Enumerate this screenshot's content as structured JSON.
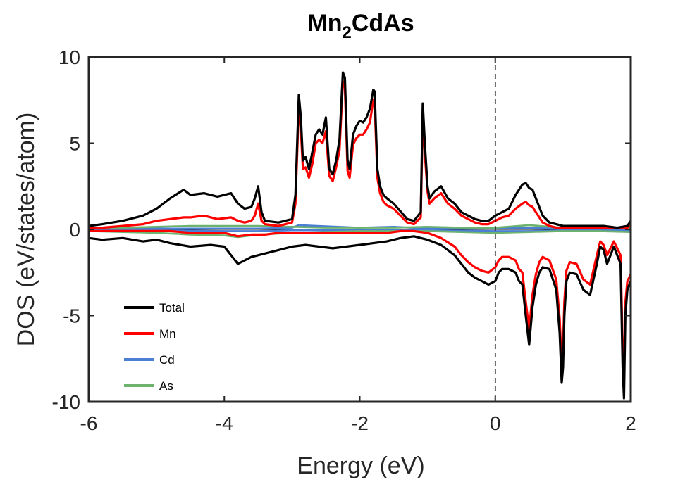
{
  "chart_data": {
    "type": "line",
    "title": {
      "main": "Mn",
      "subscript": "2",
      "suffix": "CdAs"
    },
    "xlabel": "Energy (eV)",
    "ylabel": "DOS (eV/states/atom)",
    "xlim": [
      -6,
      2
    ],
    "ylim": [
      -10,
      10
    ],
    "x_ticks": [
      -6,
      -4,
      -2,
      0,
      2
    ],
    "x_tick_labels": [
      "-6",
      "-4",
      "-2",
      "0",
      "2"
    ],
    "y_ticks": [
      10,
      5,
      0,
      -5,
      -10
    ],
    "y_tick_labels": [
      "10",
      "5",
      "0",
      "-5",
      "-10"
    ],
    "fermi_level": 0,
    "grid": false,
    "legend_position": "bottom-left",
    "series": [
      {
        "name": "Total",
        "color": "#000000",
        "x_up": [
          -6.0,
          -5.8,
          -5.5,
          -5.2,
          -5.0,
          -4.8,
          -4.6,
          -4.5,
          -4.3,
          -4.1,
          -3.9,
          -3.8,
          -3.7,
          -3.6,
          -3.55,
          -3.5,
          -3.45,
          -3.4,
          -3.2,
          -3.0,
          -2.95,
          -2.9,
          -2.87,
          -2.84,
          -2.8,
          -2.75,
          -2.7,
          -2.65,
          -2.6,
          -2.55,
          -2.5,
          -2.45,
          -2.4,
          -2.35,
          -2.3,
          -2.25,
          -2.22,
          -2.18,
          -2.15,
          -2.1,
          -2.05,
          -2.0,
          -1.95,
          -1.9,
          -1.85,
          -1.8,
          -1.78,
          -1.74,
          -1.7,
          -1.65,
          -1.6,
          -1.5,
          -1.3,
          -1.2,
          -1.1,
          -1.07,
          -1.04,
          -1.0,
          -0.97,
          -0.9,
          -0.8,
          -0.7,
          -0.6,
          -0.5,
          -0.4,
          -0.3,
          -0.2,
          -0.1,
          0.0,
          0.1,
          0.2,
          0.3,
          0.4,
          0.45,
          0.5,
          0.55,
          0.6,
          0.7,
          0.8,
          0.9,
          1.0,
          1.2,
          1.4,
          1.6,
          1.8,
          1.95,
          2.0
        ],
        "y_up": [
          0.2,
          0.3,
          0.5,
          0.8,
          1.2,
          1.8,
          2.3,
          2.0,
          2.1,
          1.9,
          2.1,
          1.5,
          1.2,
          1.3,
          1.8,
          2.5,
          1.0,
          0.5,
          0.4,
          0.6,
          2.0,
          7.8,
          6.5,
          4.0,
          4.2,
          3.5,
          4.5,
          5.5,
          5.8,
          5.5,
          6.5,
          3.5,
          3.2,
          4.0,
          5.2,
          9.1,
          8.8,
          4.0,
          3.5,
          5.5,
          6.0,
          6.3,
          6.2,
          6.5,
          7.0,
          8.1,
          8.0,
          3.5,
          2.5,
          2.0,
          1.8,
          1.5,
          0.6,
          0.5,
          1.0,
          7.3,
          5.0,
          2.5,
          1.8,
          2.2,
          2.5,
          1.8,
          1.5,
          1.0,
          0.8,
          0.6,
          0.5,
          0.5,
          0.8,
          1.0,
          1.2,
          2.0,
          2.6,
          2.7,
          2.4,
          2.3,
          1.8,
          0.8,
          0.4,
          0.3,
          0.2,
          0.2,
          0.2,
          0.2,
          0.1,
          0.2,
          0.5
        ],
        "x_dn": [
          -6.0,
          -5.8,
          -5.5,
          -5.2,
          -5.0,
          -4.8,
          -4.5,
          -4.2,
          -4.0,
          -3.9,
          -3.8,
          -3.6,
          -3.4,
          -3.2,
          -3.0,
          -2.8,
          -2.6,
          -2.4,
          -2.2,
          -2.0,
          -1.8,
          -1.6,
          -1.4,
          -1.2,
          -1.0,
          -0.8,
          -0.6,
          -0.5,
          -0.4,
          -0.3,
          -0.2,
          -0.1,
          0.0,
          0.05,
          0.1,
          0.2,
          0.3,
          0.35,
          0.4,
          0.45,
          0.5,
          0.55,
          0.6,
          0.65,
          0.7,
          0.8,
          0.9,
          0.95,
          0.98,
          1.0,
          1.02,
          1.05,
          1.1,
          1.2,
          1.3,
          1.4,
          1.5,
          1.55,
          1.6,
          1.65,
          1.7,
          1.75,
          1.8,
          1.85,
          1.88,
          1.9,
          1.92,
          1.95,
          2.0
        ],
        "y_dn": [
          -0.5,
          -0.6,
          -0.5,
          -0.7,
          -0.6,
          -0.8,
          -1.0,
          -0.9,
          -1.0,
          -1.5,
          -2.0,
          -1.6,
          -1.4,
          -1.2,
          -1.0,
          -0.9,
          -1.0,
          -1.1,
          -1.0,
          -0.9,
          -0.8,
          -0.7,
          -0.5,
          -0.4,
          -0.6,
          -0.9,
          -1.5,
          -2.0,
          -2.5,
          -2.8,
          -3.0,
          -3.2,
          -3.0,
          -2.5,
          -2.3,
          -2.3,
          -2.5,
          -3.0,
          -3.2,
          -5.0,
          -6.7,
          -4.5,
          -3.2,
          -2.5,
          -2.2,
          -2.3,
          -3.5,
          -6.0,
          -8.9,
          -8.0,
          -5.0,
          -3.0,
          -2.5,
          -2.6,
          -3.5,
          -3.8,
          -2.0,
          -1.0,
          -1.2,
          -2.0,
          -1.5,
          -1.0,
          -1.5,
          -2.0,
          -8.0,
          -9.8,
          -5.0,
          -3.5,
          -3.0
        ]
      },
      {
        "name": "Mn",
        "color": "#ff0000",
        "x_up": [
          -6.0,
          -5.8,
          -5.5,
          -5.2,
          -5.0,
          -4.8,
          -4.6,
          -4.5,
          -4.3,
          -4.1,
          -3.9,
          -3.8,
          -3.7,
          -3.6,
          -3.55,
          -3.5,
          -3.45,
          -3.4,
          -3.2,
          -3.0,
          -2.95,
          -2.9,
          -2.87,
          -2.84,
          -2.8,
          -2.75,
          -2.7,
          -2.65,
          -2.6,
          -2.55,
          -2.5,
          -2.45,
          -2.4,
          -2.35,
          -2.3,
          -2.25,
          -2.22,
          -2.18,
          -2.15,
          -2.1,
          -2.05,
          -2.0,
          -1.95,
          -1.9,
          -1.85,
          -1.8,
          -1.78,
          -1.74,
          -1.7,
          -1.65,
          -1.6,
          -1.5,
          -1.3,
          -1.2,
          -1.1,
          -1.07,
          -1.04,
          -1.0,
          -0.97,
          -0.9,
          -0.8,
          -0.7,
          -0.6,
          -0.5,
          -0.4,
          -0.3,
          -0.2,
          -0.1,
          0.0,
          0.1,
          0.2,
          0.3,
          0.4,
          0.45,
          0.5,
          0.55,
          0.6,
          0.7,
          0.8,
          0.9,
          1.0,
          1.2,
          1.4,
          1.6,
          1.8,
          1.95,
          2.0
        ],
        "y_up": [
          0.1,
          0.1,
          0.2,
          0.3,
          0.5,
          0.6,
          0.7,
          0.7,
          0.8,
          0.6,
          0.7,
          0.5,
          0.4,
          0.5,
          0.8,
          1.5,
          0.5,
          0.3,
          0.2,
          0.4,
          1.5,
          7.2,
          5.8,
          3.5,
          3.6,
          3.0,
          3.8,
          5.0,
          5.2,
          5.0,
          5.7,
          3.1,
          2.8,
          3.6,
          4.6,
          8.6,
          8.2,
          3.4,
          3.0,
          4.9,
          5.3,
          5.5,
          5.5,
          5.8,
          6.2,
          7.5,
          7.4,
          3.0,
          2.1,
          1.6,
          1.4,
          1.2,
          0.4,
          0.3,
          0.7,
          6.6,
          4.4,
          2.2,
          1.5,
          1.8,
          2.1,
          1.5,
          1.2,
          0.8,
          0.6,
          0.4,
          0.3,
          0.3,
          0.5,
          0.7,
          0.8,
          1.2,
          1.5,
          1.6,
          1.4,
          1.3,
          1.0,
          0.4,
          0.2,
          0.1,
          0.1,
          0.1,
          0.1,
          0.1,
          0.1,
          0.1,
          0.3
        ],
        "x_dn": [
          -6.0,
          -5.8,
          -5.5,
          -5.2,
          -5.0,
          -4.8,
          -4.5,
          -4.2,
          -4.0,
          -3.9,
          -3.8,
          -3.6,
          -3.4,
          -3.2,
          -3.0,
          -2.8,
          -2.6,
          -2.4,
          -2.2,
          -2.0,
          -1.8,
          -1.6,
          -1.4,
          -1.2,
          -1.0,
          -0.8,
          -0.6,
          -0.5,
          -0.4,
          -0.3,
          -0.2,
          -0.1,
          0.0,
          0.05,
          0.1,
          0.2,
          0.3,
          0.35,
          0.4,
          0.45,
          0.5,
          0.55,
          0.6,
          0.65,
          0.7,
          0.8,
          0.9,
          0.95,
          0.98,
          1.0,
          1.02,
          1.05,
          1.1,
          1.2,
          1.3,
          1.4,
          1.5,
          1.55,
          1.6,
          1.65,
          1.7,
          1.75,
          1.8,
          1.85,
          1.88,
          1.9,
          1.92,
          1.95,
          2.0
        ],
        "y_dn": [
          -0.1,
          -0.1,
          -0.1,
          -0.1,
          -0.1,
          -0.1,
          -0.2,
          -0.2,
          -0.2,
          -0.3,
          -0.4,
          -0.3,
          -0.3,
          -0.2,
          -0.2,
          -0.2,
          -0.2,
          -0.2,
          -0.2,
          -0.2,
          -0.2,
          -0.2,
          -0.1,
          -0.1,
          -0.2,
          -0.5,
          -1.0,
          -1.5,
          -1.9,
          -2.2,
          -2.4,
          -2.5,
          -2.2,
          -1.8,
          -1.6,
          -1.6,
          -1.8,
          -2.3,
          -2.5,
          -4.2,
          -5.8,
          -3.8,
          -2.6,
          -1.9,
          -1.6,
          -1.8,
          -2.9,
          -5.2,
          -7.9,
          -7.0,
          -4.2,
          -2.4,
          -1.9,
          -2.0,
          -2.9,
          -3.2,
          -1.5,
          -0.7,
          -0.9,
          -1.5,
          -1.1,
          -0.7,
          -1.1,
          -1.5,
          -7.0,
          -8.8,
          -4.3,
          -3.0,
          -2.6
        ]
      },
      {
        "name": "Cd",
        "color": "#4a7fd4",
        "x_up": [
          -6.0,
          -5.0,
          -4.0,
          -3.5,
          -3.0,
          -2.9,
          -2.0,
          -1.5,
          -1.0,
          -0.5,
          0.0,
          0.5,
          1.0,
          1.5,
          2.0
        ],
        "y_up": [
          0.05,
          0.05,
          0.05,
          0.05,
          0.1,
          0.25,
          0.1,
          0.15,
          0.05,
          0.05,
          0.05,
          0.1,
          0.05,
          0.05,
          0.05
        ],
        "x_dn": [
          -6.0,
          -5.0,
          -4.0,
          -3.5,
          -3.0,
          -2.0,
          -1.0,
          0.0,
          0.5,
          1.0,
          1.5,
          2.0
        ],
        "y_dn": [
          -0.05,
          -0.05,
          -0.1,
          -0.1,
          -0.05,
          -0.05,
          -0.05,
          -0.1,
          -0.1,
          -0.05,
          -0.05,
          -0.05
        ]
      },
      {
        "name": "As",
        "color": "#6db36d",
        "x_up": [
          -6.0,
          -5.5,
          -5.0,
          -4.5,
          -4.0,
          -3.5,
          -3.0,
          -2.5,
          -2.0,
          -1.5,
          -1.0,
          -0.5,
          0.0,
          0.5,
          1.0,
          1.5,
          2.0
        ],
        "y_up": [
          0.1,
          0.1,
          0.15,
          0.2,
          0.2,
          0.2,
          0.15,
          0.1,
          0.1,
          0.1,
          0.15,
          0.1,
          0.1,
          0.25,
          0.1,
          0.1,
          0.1
        ],
        "x_dn": [
          -6.0,
          -5.5,
          -5.0,
          -4.5,
          -4.0,
          -3.8,
          -3.5,
          -3.0,
          -2.5,
          -2.0,
          -1.5,
          -1.0,
          -0.5,
          0.0,
          0.5,
          1.0,
          1.5,
          2.0
        ],
        "y_dn": [
          -0.1,
          -0.15,
          -0.2,
          -0.3,
          -0.35,
          -0.45,
          -0.3,
          -0.2,
          -0.15,
          -0.1,
          -0.1,
          -0.1,
          -0.15,
          -0.2,
          -0.15,
          -0.1,
          -0.1,
          -0.15
        ]
      }
    ]
  }
}
